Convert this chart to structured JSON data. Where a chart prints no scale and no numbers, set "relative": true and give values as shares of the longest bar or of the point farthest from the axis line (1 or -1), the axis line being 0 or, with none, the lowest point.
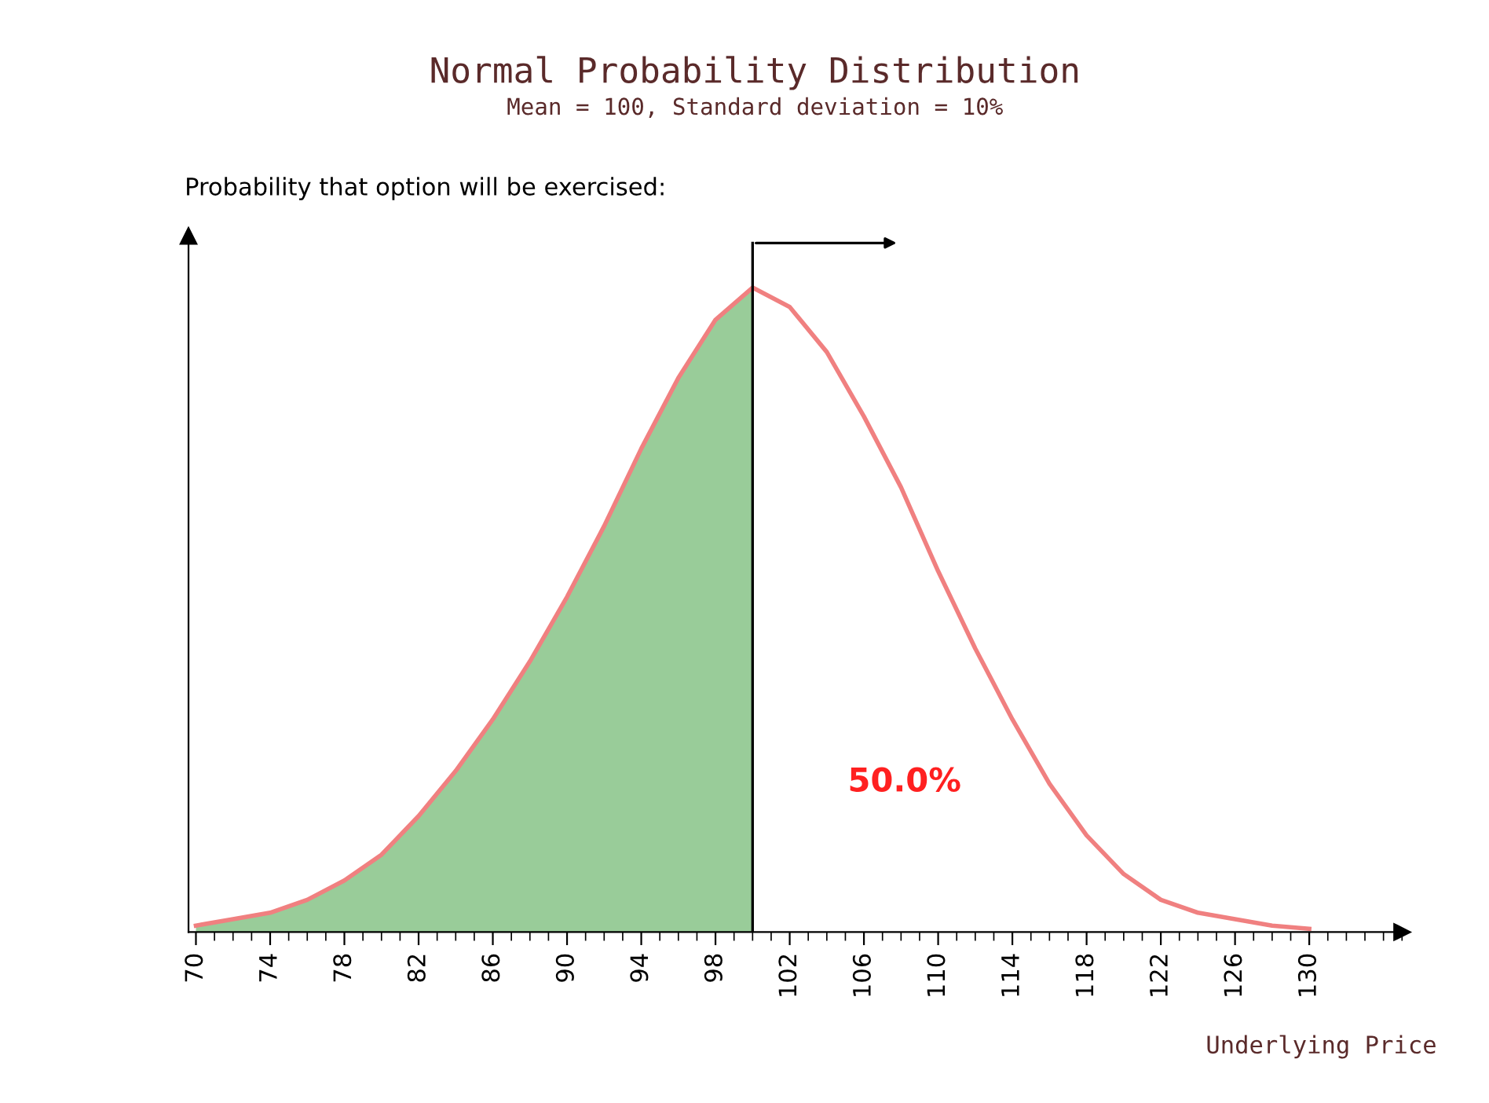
{
  "chart_data": {
    "type": "line",
    "title": "Normal Probability Distribution",
    "subtitle": "Mean = 100, Standard deviation = 10%",
    "ylabel": "Probability that option will be exercised:",
    "xlabel": "Underlying Price",
    "relative": true,
    "xlim": [
      69.6,
      135
    ],
    "xticks": [
      70,
      74,
      78,
      82,
      86,
      90,
      94,
      98,
      102,
      106,
      110,
      114,
      118,
      122,
      126,
      130
    ],
    "grid": false,
    "legend": false,
    "marker": "none",
    "line_style": "solid",
    "series": [
      {
        "type": "area",
        "color": "#99cc99",
        "x": [
          70,
          72,
          74,
          76,
          78,
          80,
          82,
          84,
          86,
          88,
          90,
          92,
          94,
          96,
          98,
          100
        ],
        "values": [
          0.01,
          0.02,
          0.03,
          0.05,
          0.08,
          0.12,
          0.18,
          0.25,
          0.33,
          0.42,
          0.52,
          0.63,
          0.75,
          0.86,
          0.95,
          1.0
        ]
      },
      {
        "color": "#f08080",
        "x": [
          70,
          72,
          74,
          76,
          78,
          80,
          82,
          84,
          86,
          88,
          90,
          92,
          94,
          96,
          98,
          100,
          102,
          104,
          106,
          108,
          110,
          112,
          114,
          116,
          118,
          120,
          122,
          124,
          126,
          128,
          130
        ],
        "values": [
          0.01,
          0.02,
          0.03,
          0.05,
          0.08,
          0.12,
          0.18,
          0.25,
          0.33,
          0.42,
          0.52,
          0.63,
          0.75,
          0.86,
          0.95,
          1.0,
          0.97,
          0.9,
          0.8,
          0.69,
          0.56,
          0.44,
          0.33,
          0.23,
          0.15,
          0.09,
          0.05,
          0.03,
          0.02,
          0.01,
          0.005
        ]
      }
    ],
    "ref_lines": [
      {
        "axis": "x",
        "value": 100,
        "color": "#000000"
      }
    ],
    "annotations": [
      "50.0%"
    ]
  }
}
